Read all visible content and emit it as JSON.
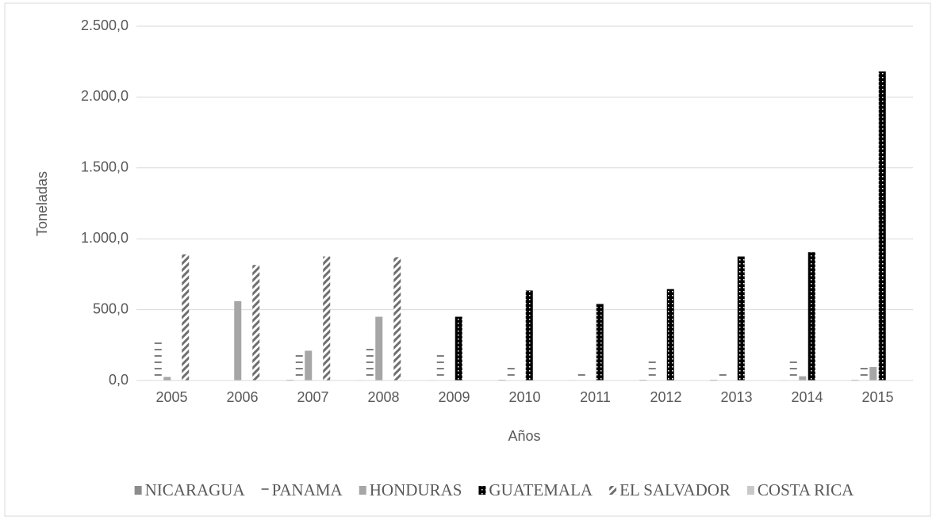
{
  "chart_data": {
    "type": "bar",
    "y_label": "Toneladas",
    "x_label": "Años",
    "categories": [
      "2005",
      "2006",
      "2007",
      "2008",
      "2009",
      "2010",
      "2011",
      "2012",
      "2013",
      "2014",
      "2015"
    ],
    "series": [
      {
        "name": "NICARAGUA",
        "color": "#8c8c8c",
        "pattern": "solid",
        "values": [
          3,
          0,
          5,
          3,
          3,
          5,
          3,
          5,
          5,
          3,
          5
        ]
      },
      {
        "name": "PANAMA",
        "color": "#7f7f7f",
        "pattern": "horizontal",
        "values": [
          300,
          0,
          200,
          255,
          210,
          115,
          75,
          155,
          75,
          165,
          115
        ]
      },
      {
        "name": "HONDURAS",
        "color": "#a6a6a6",
        "pattern": "solid",
        "values": [
          25,
          560,
          210,
          450,
          0,
          0,
          0,
          0,
          0,
          30,
          95
        ]
      },
      {
        "name": "GUATEMALA",
        "color": "#000000",
        "pattern": "dots",
        "values": [
          0,
          0,
          0,
          0,
          450,
          635,
          540,
          645,
          875,
          905,
          2180
        ]
      },
      {
        "name": "EL SALVADOR",
        "color": "#6f6f6f",
        "pattern": "diagonal",
        "values": [
          890,
          815,
          875,
          870,
          0,
          0,
          0,
          0,
          0,
          0,
          0
        ]
      },
      {
        "name": "COSTA RICA",
        "color": "#c8c8c8",
        "pattern": "solid",
        "values": [
          0,
          0,
          0,
          0,
          0,
          0,
          0,
          0,
          0,
          0,
          0
        ]
      }
    ],
    "ylim": [
      0,
      2500
    ],
    "yticks": [
      {
        "value": 0,
        "label": "0,0"
      },
      {
        "value": 500,
        "label": "500,0"
      },
      {
        "value": 1000,
        "label": "1.000,0"
      },
      {
        "value": 1500,
        "label": "1.500,0"
      },
      {
        "value": 2000,
        "label": "2.000,0"
      },
      {
        "value": 2500,
        "label": "2.500,0"
      }
    ],
    "grid": true,
    "legend": "bottom"
  }
}
